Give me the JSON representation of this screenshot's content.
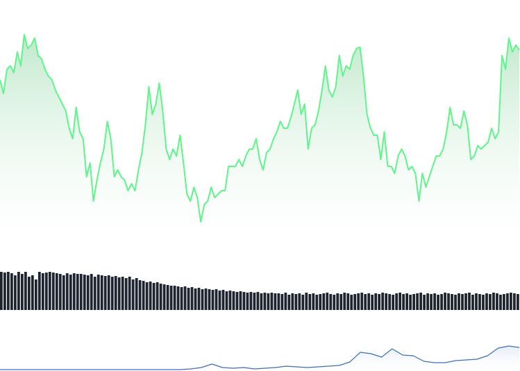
{
  "chart_data": [
    {
      "type": "area",
      "color": "#5ef58a",
      "ylim": [
        0,
        350
      ],
      "values": [
        235,
        215,
        250,
        255,
        245,
        275,
        255,
        300,
        280,
        285,
        295,
        270,
        265,
        250,
        240,
        235,
        220,
        210,
        200,
        190,
        165,
        150,
        195,
        160,
        150,
        95,
        115,
        60,
        90,
        115,
        135,
        175,
        150,
        95,
        105,
        95,
        90,
        75,
        85,
        75,
        105,
        130,
        170,
        225,
        185,
        200,
        230,
        190,
        135,
        120,
        135,
        125,
        155,
        115,
        70,
        60,
        80,
        65,
        30,
        55,
        60,
        80,
        65,
        70,
        75,
        75,
        110,
        110,
        110,
        120,
        110,
        125,
        135,
        135,
        150,
        120,
        105,
        130,
        135,
        150,
        160,
        175,
        165,
        165,
        180,
        200,
        220,
        185,
        200,
        135,
        165,
        170,
        190,
        220,
        255,
        220,
        210,
        225,
        270,
        240,
        255,
        250,
        270,
        280,
        282,
        240,
        185,
        165,
        155,
        155,
        120,
        160,
        110,
        110,
        100,
        125,
        135,
        125,
        105,
        110,
        100,
        60,
        100,
        80,
        95,
        110,
        125,
        125,
        135,
        160,
        195,
        170,
        170,
        165,
        190,
        170,
        120,
        125,
        140,
        135,
        140,
        145,
        165,
        150,
        160,
        270,
        250,
        295,
        275,
        285,
        278
      ]
    },
    {
      "type": "bar",
      "color": "#1f2530",
      "ylim": [
        0,
        60
      ],
      "values": [
        55,
        54,
        55,
        53,
        50,
        55,
        52,
        55,
        48,
        50,
        44,
        55,
        53,
        54,
        55,
        54,
        53,
        52,
        50,
        53,
        51,
        53,
        52,
        52,
        51,
        50,
        52,
        48,
        51,
        50,
        49,
        50,
        48,
        49,
        47,
        48,
        46,
        48,
        44,
        46,
        43,
        42,
        40,
        41,
        39,
        40,
        38,
        37,
        36,
        35,
        35,
        34,
        33,
        34,
        32,
        33,
        31,
        32,
        30,
        31,
        30,
        29,
        30,
        28,
        29,
        27,
        28,
        27,
        26,
        27,
        26,
        25,
        26,
        25,
        26,
        24,
        25,
        24,
        25,
        24,
        24,
        23,
        25,
        22,
        24,
        23,
        24,
        22,
        25,
        23,
        24,
        22,
        23,
        24,
        25,
        23,
        22,
        24,
        23,
        25,
        24,
        22,
        23,
        24,
        25,
        23,
        24,
        22,
        24,
        23,
        25,
        24,
        23,
        22,
        24,
        25,
        23,
        24,
        22,
        23,
        24,
        25,
        22,
        24,
        23,
        24,
        22,
        23,
        25,
        24,
        23,
        22,
        24,
        23,
        24,
        25,
        22,
        24,
        23,
        22,
        24,
        23,
        25,
        24,
        22,
        23,
        24,
        25,
        24,
        23
      ]
    },
    {
      "type": "line",
      "color": "#3b6fb5",
      "ylim": [
        0,
        80
      ],
      "values": [
        2,
        2,
        2,
        2,
        2,
        2,
        2,
        2,
        2,
        2,
        2,
        2,
        2,
        2,
        2,
        2,
        2,
        2,
        3,
        5,
        10,
        5,
        4,
        5,
        3,
        4,
        5,
        7,
        6,
        5,
        6,
        7,
        8,
        13,
        27,
        25,
        20,
        32,
        23,
        22,
        14,
        12,
        12,
        15,
        16,
        17,
        22,
        33,
        36,
        34
      ]
    }
  ]
}
